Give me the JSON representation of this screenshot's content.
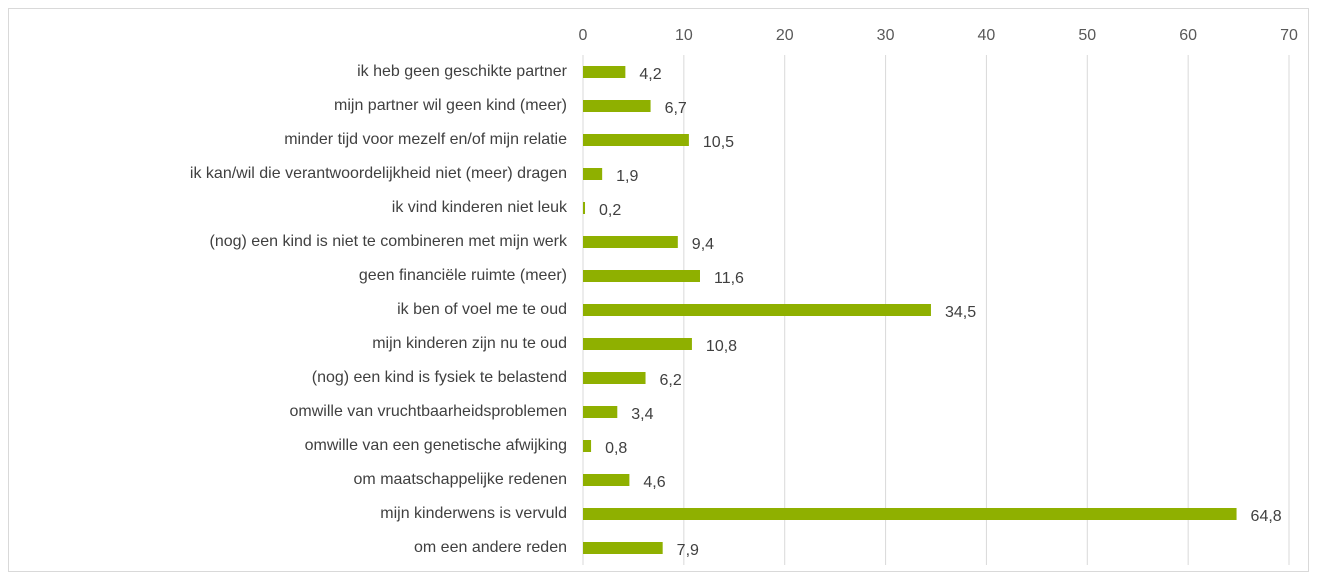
{
  "chart_data": {
    "type": "hbar",
    "categories": [
      "ik heb geen geschikte partner",
      "mijn partner wil geen kind (meer)",
      "minder tijd voor mezelf en/of mijn relatie",
      "ik kan/wil die verantwoordelijkheid niet (meer) dragen",
      "ik vind kinderen niet leuk",
      "(nog) een kind is niet te combineren met mijn werk",
      "geen financiële ruimte (meer)",
      "ik ben of voel me te oud",
      "mijn kinderen zijn nu te oud",
      "(nog) een kind is fysiek te belastend",
      "omwille van vruchtbaarheidsproblemen",
      "omwille van een genetische afwijking",
      "om maatschappelijke redenen",
      "mijn kinderwens is vervuld",
      "om een andere reden"
    ],
    "values": [
      4.2,
      6.7,
      10.5,
      1.9,
      0.2,
      9.4,
      11.6,
      34.5,
      10.8,
      6.2,
      3.4,
      0.8,
      4.6,
      64.8,
      7.9
    ],
    "value_labels": [
      "4,2",
      "6,7",
      "10,5",
      "1,9",
      "0,2",
      "9,4",
      "11,6",
      "34,5",
      "10,8",
      "6,2",
      "3,4",
      "0,8",
      "4,6",
      "64,8",
      "7,9"
    ],
    "color": "#8fb000",
    "xlim": [
      0,
      70
    ],
    "xticks": [
      0,
      10,
      20,
      30,
      40,
      50,
      60,
      70
    ],
    "grid": true
  }
}
